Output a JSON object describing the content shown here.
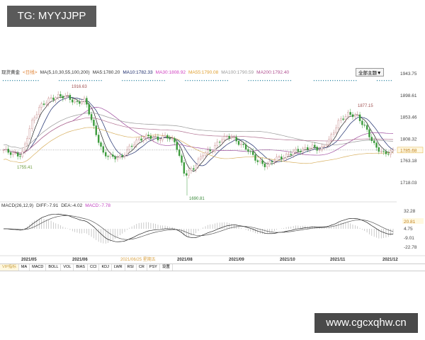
{
  "watermark_top": "TG: MYYJJPP",
  "watermark_bottom": "www.cgcxqhw.cn",
  "header": {
    "instrument": "现货黄金",
    "period": "<日线>",
    "ma_label": "MA(5,10,30,55,100,200)",
    "ma_values": [
      {
        "label": "MA5:1780.20",
        "color": "#333333"
      },
      {
        "label": "MA10:1782.33",
        "color": "#1a2a6a"
      },
      {
        "label": "MA30:1808.92",
        "color": "#d040c0"
      },
      {
        "label": "MA55:1790.08",
        "color": "#e0a030"
      },
      {
        "label": "MA100:1790.59",
        "color": "#999999"
      },
      {
        "label": "MA200:1792.40",
        "color": "#b05090"
      }
    ],
    "subject_button": "全部主题▼"
  },
  "macd_header": {
    "label": "MACD(26,12,9)",
    "diff": "DIFF:-7.91",
    "dea": "DEA:-4.02",
    "macd": "MACD:-7.78"
  },
  "tabs": [
    "VIP指标",
    "MA",
    "MACD",
    "BOLL",
    "VOL",
    "BIAS",
    "CCI",
    "KDJ",
    "LWR",
    "RSI",
    "CR",
    "PSY",
    "设置"
  ],
  "cursor_date": "2021/06/25 星期五",
  "chart_data": {
    "type": "candlestick",
    "price_axis": {
      "ticks": [
        "1943.75",
        "1898.61",
        "1853.46",
        "1808.32",
        "1763.18",
        "1718.03"
      ],
      "range": [
        1718.03,
        1943.75
      ],
      "current": "1785.68"
    },
    "macd_axis": {
      "ticks": [
        "32.28",
        "20.81",
        "4.75",
        "-9.01",
        "-22.78"
      ],
      "highlight": "20.81"
    },
    "x_ticks": [
      "2021/05",
      "2021/06",
      "2021/08",
      "2021/09",
      "2021/10",
      "2021/11",
      "2021/12"
    ],
    "annotations": {
      "high1": "1916.63",
      "low1": "1755.41",
      "low2": "1690.81",
      "high2": "1877.15"
    },
    "approx_closes": [
      1786,
      1778,
      1774,
      1838,
      1875,
      1890,
      1897,
      1897,
      1882,
      1890,
      1830,
      1778,
      1771,
      1771,
      1793,
      1808,
      1815,
      1808,
      1815,
      1800,
      1734,
      1749,
      1778,
      1786,
      1808,
      1815,
      1800,
      1786,
      1763,
      1753,
      1768,
      1771,
      1783,
      1786,
      1793,
      1786,
      1808,
      1845,
      1860,
      1857,
      1830,
      1793,
      1778,
      1783
    ]
  }
}
